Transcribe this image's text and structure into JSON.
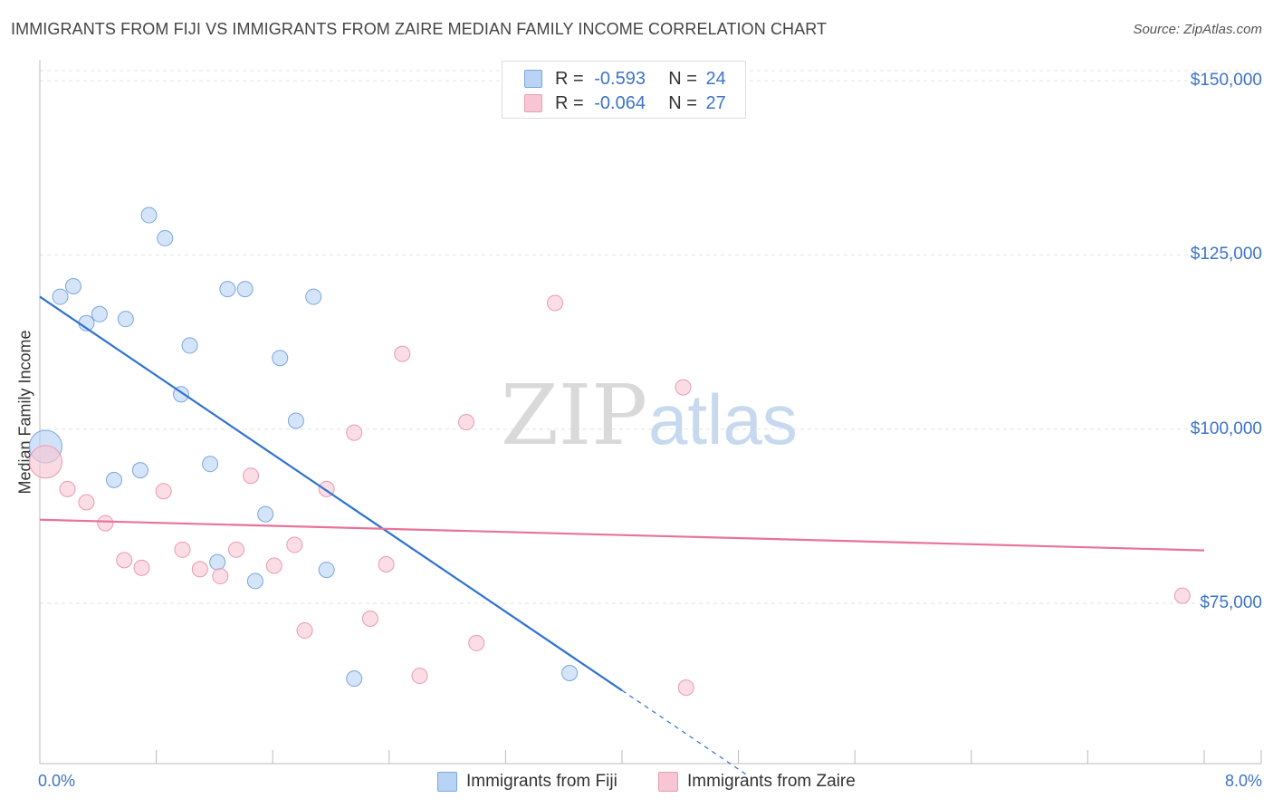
{
  "chart_data": {
    "type": "scatter",
    "title": "IMMIGRANTS FROM FIJI VS IMMIGRANTS FROM ZAIRE MEDIAN FAMILY INCOME CORRELATION CHART",
    "source": "Source: ZipAtlas.com",
    "watermark": {
      "zip": "ZIP",
      "atlas": "atlas"
    },
    "xlabel": "",
    "ylabel": "Median Family Income",
    "xlim": [
      0,
      8
    ],
    "ylim": [
      52000,
      153000
    ],
    "x_ticks": [
      {
        "value": 0,
        "label": "0.0%"
      },
      {
        "value": 8,
        "label": "8.0%"
      }
    ],
    "y_ticks": [
      {
        "value": 75000,
        "label": "$75,000"
      },
      {
        "value": 100000,
        "label": "$100,000"
      },
      {
        "value": 125000,
        "label": "$125,000"
      },
      {
        "value": 150000,
        "label": "$150,000"
      }
    ],
    "legend": [
      {
        "swatch": "fiji",
        "r_label": "R =",
        "r_value": "-0.593",
        "n_label": "N =",
        "n_value": "24"
      },
      {
        "swatch": "zaire",
        "r_label": "R =",
        "r_value": "-0.064",
        "n_label": "N =",
        "n_value": "27"
      }
    ],
    "series": [
      {
        "name": "Immigrants from Fiji",
        "fill": "#b9d3f5",
        "stroke": "#7aa6e0",
        "line_color": "#2f72cf",
        "trend": {
          "x0": 0,
          "y0": 119000,
          "x1": 4.0,
          "y1": 62500,
          "dash_to_x": 4.85
        },
        "points": [
          {
            "x": 0.04,
            "y": 97500,
            "big": true
          },
          {
            "x": 0.14,
            "y": 119000
          },
          {
            "x": 0.23,
            "y": 120500
          },
          {
            "x": 0.32,
            "y": 115200
          },
          {
            "x": 0.41,
            "y": 116500
          },
          {
            "x": 0.59,
            "y": 115800
          },
          {
            "x": 0.75,
            "y": 130700
          },
          {
            "x": 0.86,
            "y": 127400
          },
          {
            "x": 1.03,
            "y": 112000
          },
          {
            "x": 0.97,
            "y": 105000
          },
          {
            "x": 1.29,
            "y": 120100
          },
          {
            "x": 1.41,
            "y": 120100
          },
          {
            "x": 1.65,
            "y": 110200
          },
          {
            "x": 1.88,
            "y": 119000
          },
          {
            "x": 1.76,
            "y": 101200
          },
          {
            "x": 0.51,
            "y": 92700
          },
          {
            "x": 0.69,
            "y": 94100
          },
          {
            "x": 1.17,
            "y": 95000
          },
          {
            "x": 1.55,
            "y": 87800
          },
          {
            "x": 1.22,
            "y": 80900
          },
          {
            "x": 1.48,
            "y": 78200
          },
          {
            "x": 1.97,
            "y": 79800
          },
          {
            "x": 2.16,
            "y": 64200
          },
          {
            "x": 3.64,
            "y": 65000
          }
        ]
      },
      {
        "name": "Immigrants from Zaire",
        "fill": "#f7c6d4",
        "stroke": "#eb9ab3",
        "line_color": "#e8729a",
        "trend": {
          "x0": 0,
          "y0": 87000,
          "x1": 8.0,
          "y1": 82600
        },
        "points": [
          {
            "x": 0.04,
            "y": 95300,
            "big": true
          },
          {
            "x": 0.19,
            "y": 91400
          },
          {
            "x": 0.32,
            "y": 89500
          },
          {
            "x": 0.45,
            "y": 86500
          },
          {
            "x": 0.58,
            "y": 81200
          },
          {
            "x": 0.7,
            "y": 80100
          },
          {
            "x": 0.85,
            "y": 91100
          },
          {
            "x": 0.98,
            "y": 82700
          },
          {
            "x": 1.1,
            "y": 79900
          },
          {
            "x": 1.24,
            "y": 78900
          },
          {
            "x": 1.35,
            "y": 82700
          },
          {
            "x": 1.45,
            "y": 93300
          },
          {
            "x": 1.61,
            "y": 80400
          },
          {
            "x": 1.75,
            "y": 83400
          },
          {
            "x": 1.82,
            "y": 71100
          },
          {
            "x": 1.97,
            "y": 91400
          },
          {
            "x": 2.16,
            "y": 99500
          },
          {
            "x": 2.27,
            "y": 72800
          },
          {
            "x": 2.38,
            "y": 80600
          },
          {
            "x": 2.49,
            "y": 110800
          },
          {
            "x": 2.61,
            "y": 64600
          },
          {
            "x": 2.93,
            "y": 101000
          },
          {
            "x": 3.0,
            "y": 69300
          },
          {
            "x": 3.54,
            "y": 118100
          },
          {
            "x": 4.42,
            "y": 106000
          },
          {
            "x": 4.44,
            "y": 62900
          },
          {
            "x": 7.85,
            "y": 76100
          }
        ]
      }
    ]
  }
}
